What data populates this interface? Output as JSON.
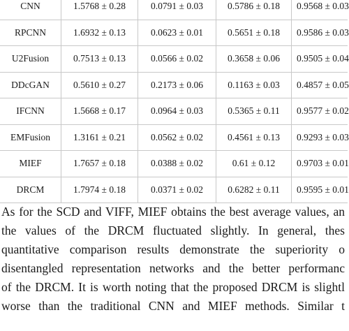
{
  "table": {
    "rows": [
      [
        "CNN",
        "1.5768 ± 0.28",
        "0.0791 ± 0.03",
        "0.5786 ± 0.18",
        "0.9568 ± 0.03"
      ],
      [
        "RPCNN",
        "1.6932 ± 0.13",
        "0.0623 ± 0.01",
        "0.5651 ± 0.18",
        "0.9586 ± 0.03"
      ],
      [
        "U2Fusion",
        "0.7513 ± 0.13",
        "0.0566 ± 0.02",
        "0.3658 ± 0.06",
        "0.9505 ± 0.04"
      ],
      [
        "DDcGAN",
        "0.5610 ± 0.27",
        "0.2173 ± 0.06",
        "0.1163 ± 0.03",
        "0.4857 ± 0.05"
      ],
      [
        "IFCNN",
        "1.5668 ± 0.17",
        "0.0964 ± 0.03",
        "0.5365 ± 0.11",
        "0.9577 ± 0.02"
      ],
      [
        "EMFusion",
        "1.3161 ± 0.21",
        "0.0562 ± 0.02",
        "0.4561 ± 0.13",
        "0.9293 ± 0.03"
      ],
      [
        "MIEF",
        "1.7657 ± 0.18",
        "0.0388 ± 0.02",
        "0.61 ± 0.12",
        "0.9703 ± 0.01"
      ],
      [
        "DRCM",
        "1.7974 ± 0.18",
        "0.0371 ± 0.02",
        "0.6282 ± 0.11",
        "0.9595 ± 0.01"
      ]
    ]
  },
  "paragraph": {
    "lines": [
      "As for the SCD and VIFF, MIEF obtains the best average values, an",
      "the values of the DRCM fluctuated slightly. In general, thes",
      "quantitative comparison results demonstrate the superiority o",
      "disentangled representation networks and the better performanc",
      "of the DRCM. It is worth noting that the proposed DRCM is slightl",
      "worse than the traditional CNN and MIEF methods. Similar t"
    ]
  }
}
